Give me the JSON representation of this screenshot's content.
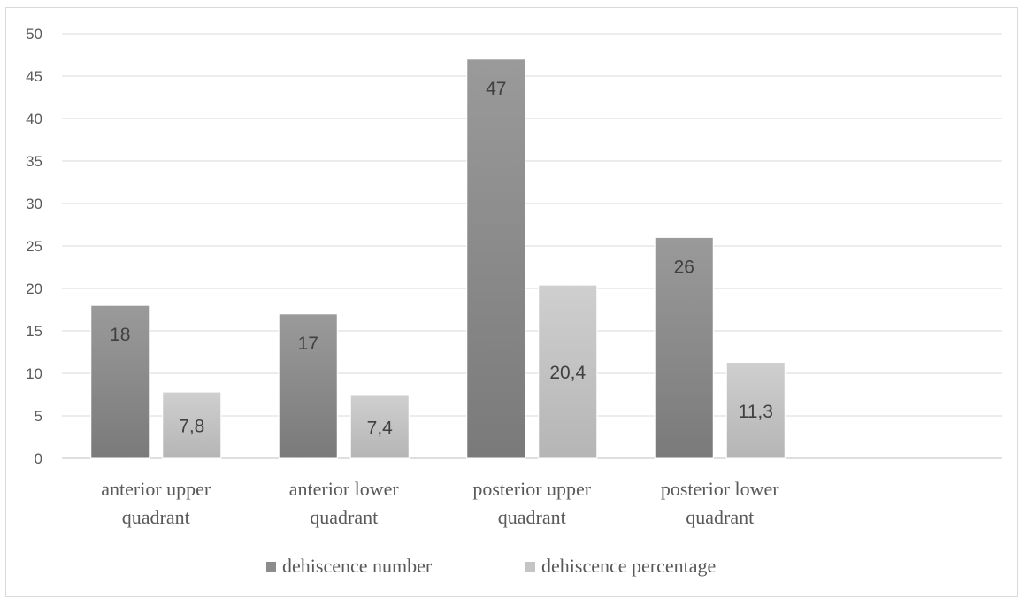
{
  "chart_data": {
    "type": "bar",
    "title": "",
    "xlabel": "",
    "ylabel": "",
    "ylim": [
      0,
      50
    ],
    "yticks": [
      0,
      5,
      10,
      15,
      20,
      25,
      30,
      35,
      40,
      45,
      50
    ],
    "categories": [
      [
        "anterior upper",
        "quadrant"
      ],
      [
        "anterior lower",
        "quadrant"
      ],
      [
        "posterior upper",
        "quadrant"
      ],
      [
        "posterior lower",
        "quadrant"
      ]
    ],
    "series": [
      {
        "name": "dehiscence number",
        "values": [
          18,
          17,
          47,
          26
        ],
        "labels": [
          "18",
          "17",
          "47",
          "26"
        ],
        "color": "#8c8c8c"
      },
      {
        "name": "dehiscence percentage",
        "values": [
          7.8,
          7.4,
          20.4,
          11.3
        ],
        "labels": [
          "7,8",
          "7,4",
          "20,4",
          "11,3"
        ],
        "color": "#c4c4c4"
      }
    ],
    "grid": true,
    "legend_position": "bottom"
  }
}
